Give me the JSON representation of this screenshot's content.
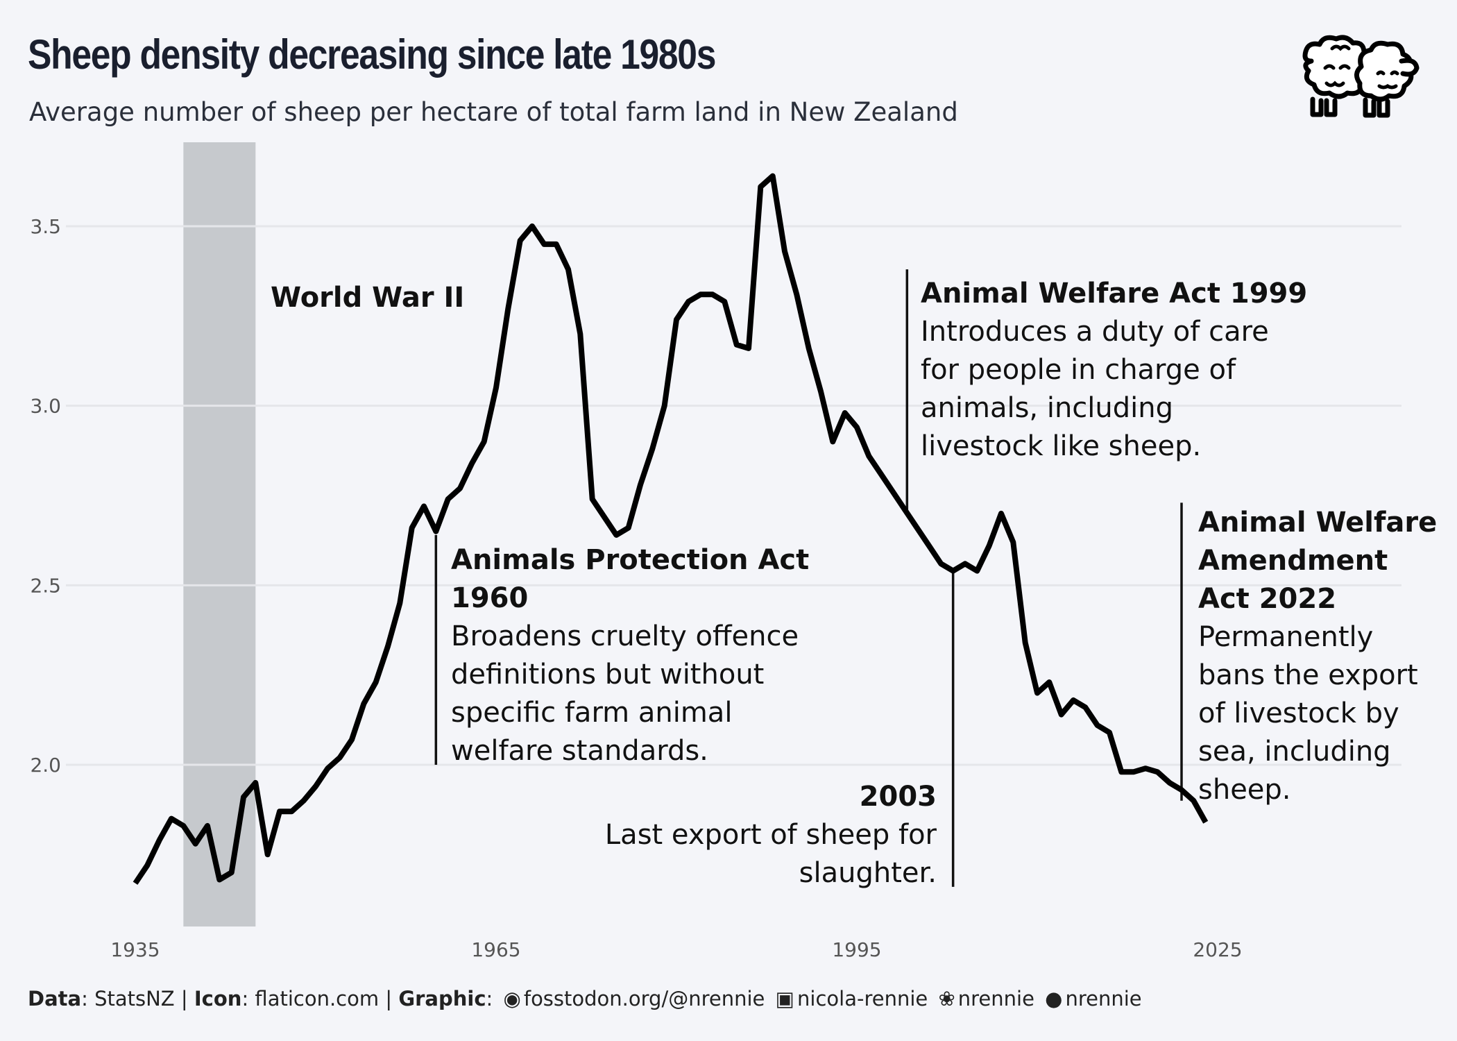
{
  "header": {
    "title": "Sheep density decreasing since late 1980s",
    "subtitle": "Average number of sheep per hectare of total farm land in New Zealand"
  },
  "icons": {
    "corner": "sheep-icon",
    "mastodon": "mastodon-icon",
    "linkedin": "linkedin-icon",
    "bluesky": "butterfly-icon",
    "github": "github-icon"
  },
  "chart_data": {
    "type": "line",
    "title": "Sheep density decreasing since late 1980s",
    "subtitle": "Average number of sheep per hectare of total farm land in New Zealand",
    "xlabel": "",
    "ylabel": "",
    "xlim": [
      1935,
      2025
    ],
    "ylim": [
      1.55,
      3.75
    ],
    "x_ticks": [
      1935,
      1965,
      1995,
      2025
    ],
    "y_ticks": [
      2.0,
      2.5,
      3.0,
      3.5
    ],
    "y_tick_labels": [
      "2.0",
      "2.5",
      "3.0",
      "3.5"
    ],
    "grid": "horizontal",
    "line_color": "#000000",
    "shaded_region": {
      "x_start": 1939,
      "x_end": 1945,
      "label": "World War II",
      "color": "#c6c9cd"
    },
    "series": [
      {
        "name": "",
        "x": [
          1935,
          1936,
          1937,
          1938,
          1939,
          1940,
          1941,
          1942,
          1943,
          1944,
          1945,
          1946,
          1947,
          1948,
          1949,
          1950,
          1951,
          1952,
          1953,
          1954,
          1955,
          1956,
          1957,
          1958,
          1959,
          1960,
          1961,
          1962,
          1963,
          1964,
          1965,
          1966,
          1967,
          1968,
          1969,
          1970,
          1971,
          1972,
          1973,
          1974,
          1975,
          1976,
          1977,
          1978,
          1979,
          1980,
          1981,
          1982,
          1983,
          1984,
          1985,
          1986,
          1987,
          1988,
          1989,
          1990,
          1991,
          1992,
          1993,
          1994,
          1995,
          1996,
          1997,
          1998,
          1999,
          2000,
          2001,
          2002,
          2003,
          2004,
          2005,
          2006,
          2007,
          2008,
          2009,
          2010,
          2011,
          2012,
          2013,
          2014,
          2015,
          2016,
          2017,
          2018,
          2019,
          2020,
          2021,
          2022,
          2023,
          2024
        ],
        "y": [
          1.67,
          1.72,
          1.79,
          1.85,
          1.83,
          1.78,
          1.83,
          1.68,
          1.7,
          1.91,
          1.95,
          1.75,
          1.87,
          1.87,
          1.9,
          1.94,
          1.99,
          2.02,
          2.07,
          2.17,
          2.23,
          2.33,
          2.45,
          2.66,
          2.72,
          2.65,
          2.74,
          2.77,
          2.84,
          2.9,
          3.05,
          3.27,
          3.46,
          3.5,
          3.45,
          3.45,
          3.38,
          3.2,
          2.74,
          2.69,
          2.64,
          2.66,
          2.78,
          2.88,
          3.0,
          3.24,
          3.29,
          3.31,
          3.31,
          3.29,
          3.17,
          3.16,
          3.61,
          3.64,
          3.43,
          3.31,
          3.16,
          3.04,
          2.9,
          2.98,
          2.94,
          2.86,
          2.81,
          2.76,
          2.71,
          2.66,
          2.61,
          2.56,
          2.54,
          2.56,
          2.54,
          2.61,
          2.7,
          2.62,
          2.34,
          2.2,
          2.23,
          2.14,
          2.18,
          2.16,
          2.11,
          2.09,
          1.98,
          1.98,
          1.99,
          1.98,
          1.95,
          1.93,
          1.9,
          1.84
        ]
      }
    ],
    "annotations": [
      {
        "id": "apa1960",
        "year": 1960,
        "heading": [
          "Animals Protection Act",
          "1960"
        ],
        "body": [
          "Broadens cruelty offence",
          "definitions but without",
          "specific farm animal",
          "welfare standards."
        ]
      },
      {
        "id": "awa1999",
        "year": 1999,
        "heading": [
          "Animal Welfare Act 1999"
        ],
        "body": [
          "Introduces a duty of care",
          "for people in charge of",
          "animals, including",
          "livestock like sheep."
        ]
      },
      {
        "id": "export2003",
        "year": 2003,
        "heading": [
          "2003"
        ],
        "body": [
          "Last export of sheep for",
          "slaughter."
        ]
      },
      {
        "id": "awaa2022",
        "year": 2022,
        "heading": [
          "Animal Welfare",
          "Amendment",
          "Act 2022"
        ],
        "body": [
          "Permanently",
          "bans the export",
          "of livestock by",
          "sea, including",
          "sheep."
        ]
      }
    ]
  },
  "caption": {
    "data_label": "Data",
    "data_value": ": StatsNZ | ",
    "icon_label": "Icon",
    "icon_value": ": flaticon.com | ",
    "graphic_label": "Graphic",
    "graphic_sep": ":",
    "mastodon": "fosstodon.org/@nrennie",
    "linkedin": "nicola-rennie",
    "bluesky": "nrennie",
    "github": "nrennie"
  }
}
